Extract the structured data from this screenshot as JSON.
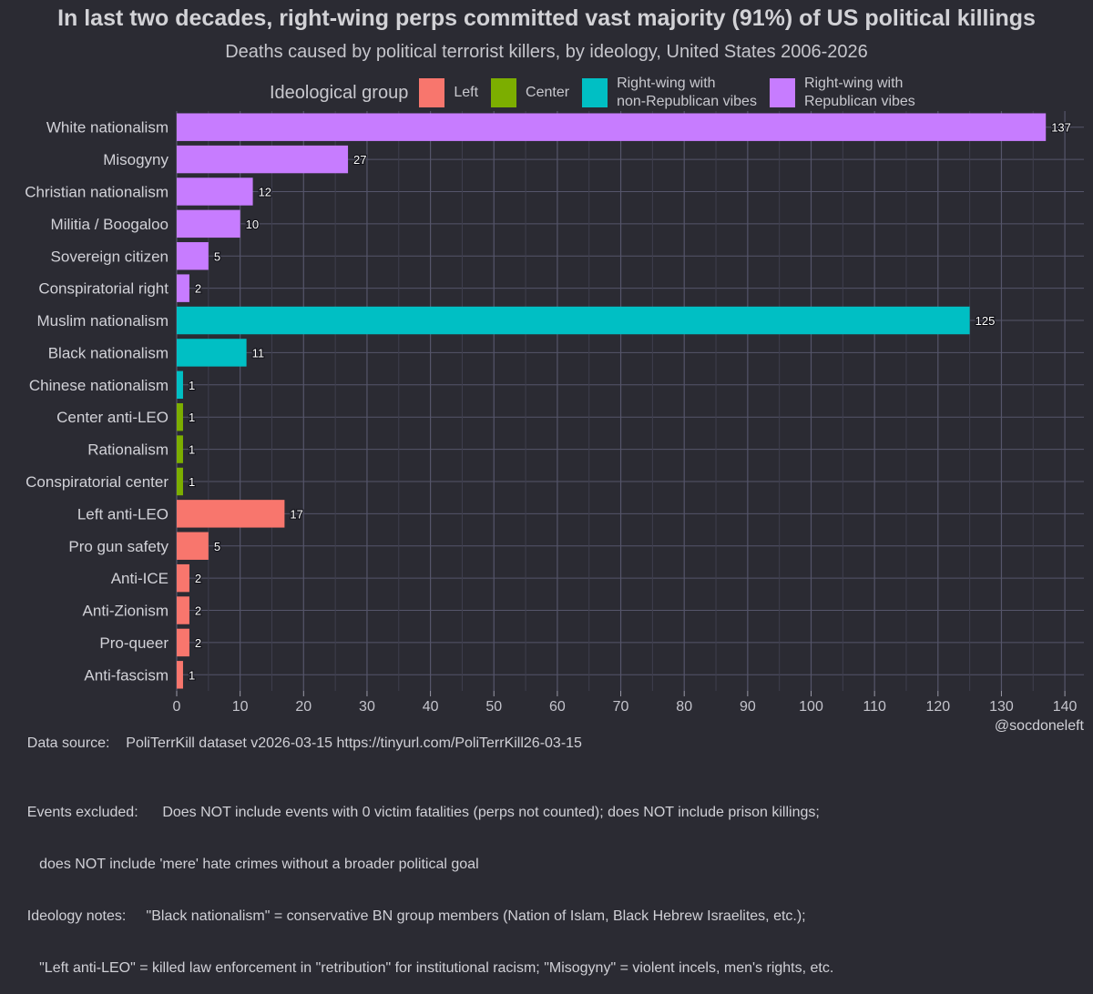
{
  "title": "In last two decades, right-wing perps committed vast majority (91%) of US political killings",
  "subtitle": "Deaths caused by political terrorist killers, by ideology, United States 2006-2026",
  "legend": {
    "title": "Ideological group",
    "items": [
      {
        "key": "left",
        "label": "Left",
        "color": "#f8766d"
      },
      {
        "key": "center",
        "label": "Center",
        "color": "#7cae00"
      },
      {
        "key": "rw_nonrep",
        "label": "Right-wing with\nnon-Republican vibes",
        "color": "#00bfc4"
      },
      {
        "key": "rw_rep",
        "label": "Right-wing with\nRepublican vibes",
        "color": "#c77cff"
      }
    ]
  },
  "chart_data": {
    "type": "bar",
    "orientation": "horizontal",
    "categories": [
      "White nationalism",
      "Misogyny",
      "Christian nationalism",
      "Militia / Boogaloo",
      "Sovereign citizen",
      "Conspiratorial right",
      "Muslim nationalism",
      "Black nationalism",
      "Chinese nationalism",
      "Center anti-LEO",
      "Rationalism",
      "Conspiratorial center",
      "Left anti-LEO",
      "Pro gun safety",
      "Anti-ICE",
      "Anti-Zionism",
      "Pro-queer",
      "Anti-fascism"
    ],
    "values": [
      137,
      27,
      12,
      10,
      5,
      2,
      125,
      11,
      1,
      1,
      1,
      1,
      17,
      5,
      2,
      2,
      2,
      1
    ],
    "groups": [
      "rw_rep",
      "rw_rep",
      "rw_rep",
      "rw_rep",
      "rw_rep",
      "rw_rep",
      "rw_nonrep",
      "rw_nonrep",
      "rw_nonrep",
      "center",
      "center",
      "center",
      "left",
      "left",
      "left",
      "left",
      "left",
      "left"
    ],
    "xlim": [
      0,
      143
    ],
    "xticks": [
      0,
      10,
      20,
      30,
      40,
      50,
      60,
      70,
      80,
      90,
      100,
      110,
      120,
      130,
      140
    ],
    "grid": true,
    "legend_position": "top"
  },
  "footer": {
    "source_label": "Data source:",
    "source_text": "PoliTerrKill dataset v2026-03-15 https://tinyurl.com/PoliTerrKill26-03-15",
    "handle": "@socdoneleft",
    "excluded_label": "Events excluded:",
    "excluded_text": "Does NOT include events with 0 victim fatalities (perps not counted); does NOT include prison killings;",
    "excluded_text2": "does NOT include 'mere' hate crimes without a broader political goal",
    "notes_label": "Ideology notes:",
    "notes_text": "\"Black nationalism\" = conservative BN group members (Nation of Islam, Black Hebrew Israelites, etc.);",
    "notes_text2": "\"Left anti-LEO\" = killed law enforcement in \"retribution\" for institutional racism; \"Misogyny\" = violent incels, men's rights, etc."
  }
}
